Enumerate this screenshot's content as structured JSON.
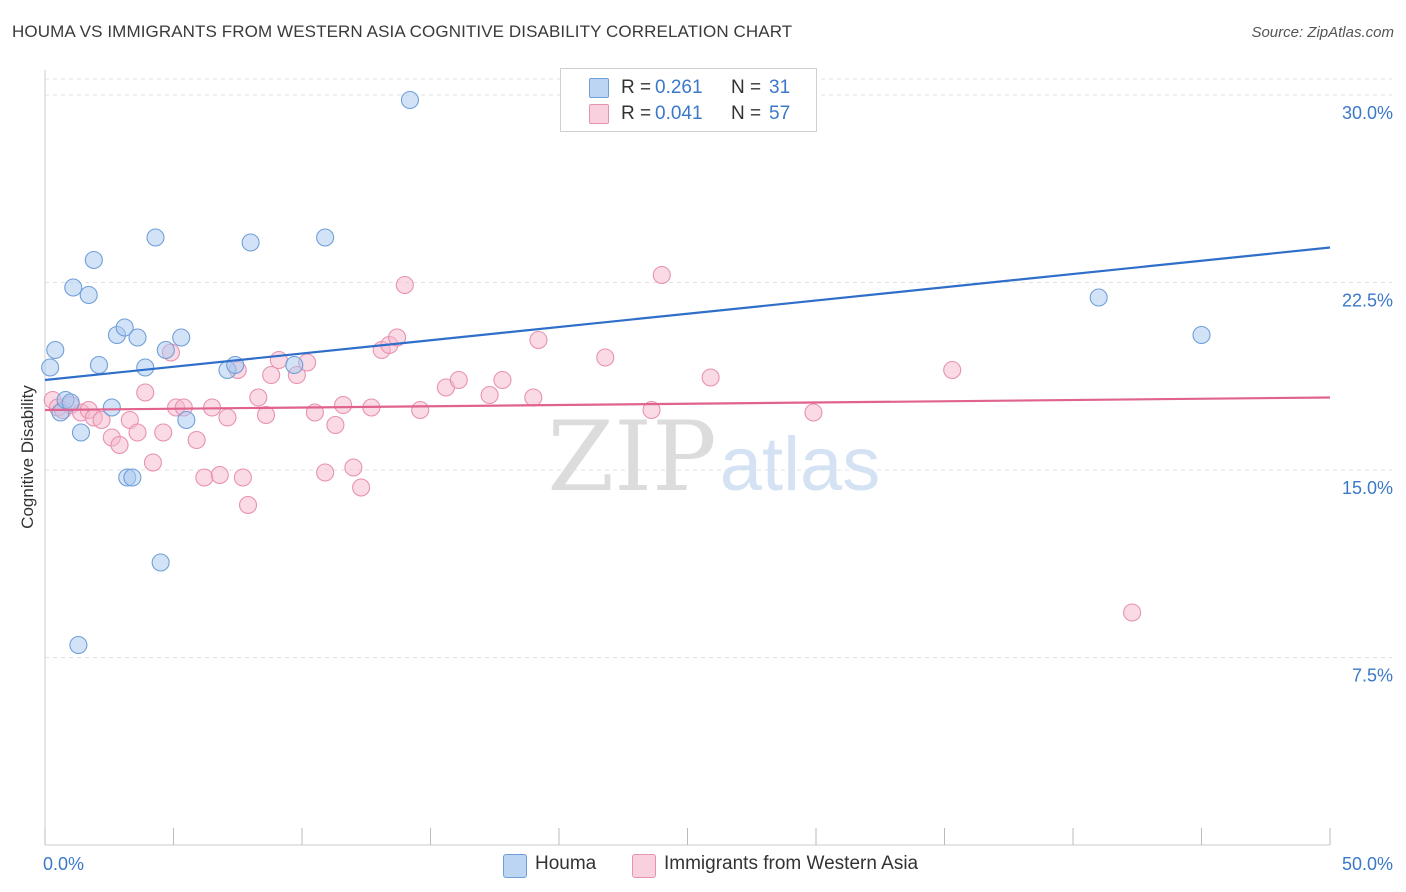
{
  "header": {
    "title": "HOUMA VS IMMIGRANTS FROM WESTERN ASIA COGNITIVE DISABILITY CORRELATION CHART",
    "source": "Source: ZipAtlas.com"
  },
  "watermark": {
    "part1": "ZIP",
    "part2": "atlas"
  },
  "colors": {
    "blue_fill": "#a8c8f0",
    "blue_stroke": "#6f9fd8",
    "blue_line": "#2f6ec9",
    "pink_fill": "#f5b8cc",
    "pink_stroke": "#e891b0",
    "pink_line": "#e0628e",
    "axis_text": "#3b78c9",
    "grid": "#e2e2e2"
  },
  "legend": {
    "series": [
      {
        "r_label": "R = ",
        "r_value": "0.261",
        "n_label": "N = ",
        "n_value": "31"
      },
      {
        "r_label": "R = ",
        "r_value": "0.041",
        "n_label": "N = ",
        "n_value": "57"
      }
    ]
  },
  "chart_data": {
    "type": "scatter",
    "title": "HOUMA VS IMMIGRANTS FROM WESTERN ASIA COGNITIVE DISABILITY CORRELATION CHART",
    "xlabel": "",
    "ylabel": "Cognitive Disability",
    "xlim": [
      0,
      50
    ],
    "ylim": [
      0,
      31
    ],
    "x_tick_labels": [
      "0.0%",
      "50.0%"
    ],
    "y_ticks": [
      7.5,
      15.0,
      22.5,
      30.0
    ],
    "y_tick_labels": [
      "7.5%",
      "15.0%",
      "22.5%",
      "30.0%"
    ],
    "grid": true,
    "legend_position": "top-center",
    "series": [
      {
        "name": "Houma",
        "r": 0.261,
        "n": 31,
        "trend": {
          "x": [
            0,
            50
          ],
          "y": [
            18.6,
            23.9
          ]
        },
        "points": [
          [
            0.2,
            19.1
          ],
          [
            0.4,
            19.8
          ],
          [
            0.6,
            17.3
          ],
          [
            0.8,
            17.8
          ],
          [
            1.0,
            17.7
          ],
          [
            1.1,
            22.3
          ],
          [
            1.4,
            16.5
          ],
          [
            1.7,
            22.0
          ],
          [
            1.9,
            23.4
          ],
          [
            2.1,
            19.2
          ],
          [
            2.6,
            17.5
          ],
          [
            2.8,
            20.4
          ],
          [
            3.1,
            20.7
          ],
          [
            3.2,
            14.7
          ],
          [
            3.4,
            14.7
          ],
          [
            3.6,
            20.3
          ],
          [
            3.9,
            19.1
          ],
          [
            4.3,
            24.3
          ],
          [
            4.5,
            11.3
          ],
          [
            4.7,
            19.8
          ],
          [
            5.3,
            20.3
          ],
          [
            5.5,
            17.0
          ],
          [
            7.1,
            19.0
          ],
          [
            7.4,
            19.2
          ],
          [
            8.0,
            24.1
          ],
          [
            9.7,
            19.2
          ],
          [
            10.9,
            24.3
          ],
          [
            14.2,
            29.8
          ],
          [
            41.0,
            21.9
          ],
          [
            45.0,
            20.4
          ],
          [
            1.3,
            8.0
          ]
        ]
      },
      {
        "name": "Immigrants from Western Asia",
        "r": 0.041,
        "n": 57,
        "trend": {
          "x": [
            0,
            50
          ],
          "y": [
            17.4,
            17.9
          ]
        },
        "points": [
          [
            0.3,
            17.8
          ],
          [
            0.5,
            17.5
          ],
          [
            0.7,
            17.4
          ],
          [
            1.0,
            17.6
          ],
          [
            1.4,
            17.3
          ],
          [
            1.7,
            17.4
          ],
          [
            1.9,
            17.1
          ],
          [
            2.2,
            17.0
          ],
          [
            2.6,
            16.3
          ],
          [
            2.9,
            16.0
          ],
          [
            3.3,
            17.0
          ],
          [
            3.6,
            16.5
          ],
          [
            3.9,
            18.1
          ],
          [
            4.2,
            15.3
          ],
          [
            4.6,
            16.5
          ],
          [
            4.9,
            19.7
          ],
          [
            5.1,
            17.5
          ],
          [
            5.4,
            17.5
          ],
          [
            5.9,
            16.2
          ],
          [
            6.2,
            14.7
          ],
          [
            6.5,
            17.5
          ],
          [
            6.8,
            14.8
          ],
          [
            7.1,
            17.1
          ],
          [
            7.5,
            19.0
          ],
          [
            7.7,
            14.7
          ],
          [
            7.9,
            13.6
          ],
          [
            8.3,
            17.9
          ],
          [
            8.6,
            17.2
          ],
          [
            8.8,
            18.8
          ],
          [
            9.1,
            19.4
          ],
          [
            9.8,
            18.8
          ],
          [
            10.2,
            19.3
          ],
          [
            10.5,
            17.3
          ],
          [
            10.9,
            14.9
          ],
          [
            11.3,
            16.8
          ],
          [
            11.6,
            17.6
          ],
          [
            12.0,
            15.1
          ],
          [
            12.3,
            14.3
          ],
          [
            12.7,
            17.5
          ],
          [
            13.1,
            19.8
          ],
          [
            13.4,
            20.0
          ],
          [
            13.7,
            20.3
          ],
          [
            14.0,
            22.4
          ],
          [
            14.6,
            17.4
          ],
          [
            15.6,
            18.3
          ],
          [
            16.1,
            18.6
          ],
          [
            17.3,
            18.0
          ],
          [
            17.8,
            18.6
          ],
          [
            19.0,
            17.9
          ],
          [
            19.2,
            20.2
          ],
          [
            21.8,
            19.5
          ],
          [
            23.6,
            17.4
          ],
          [
            24.0,
            22.8
          ],
          [
            25.9,
            18.7
          ],
          [
            29.9,
            17.3
          ],
          [
            35.3,
            19.0
          ],
          [
            42.3,
            9.3
          ]
        ]
      }
    ]
  }
}
